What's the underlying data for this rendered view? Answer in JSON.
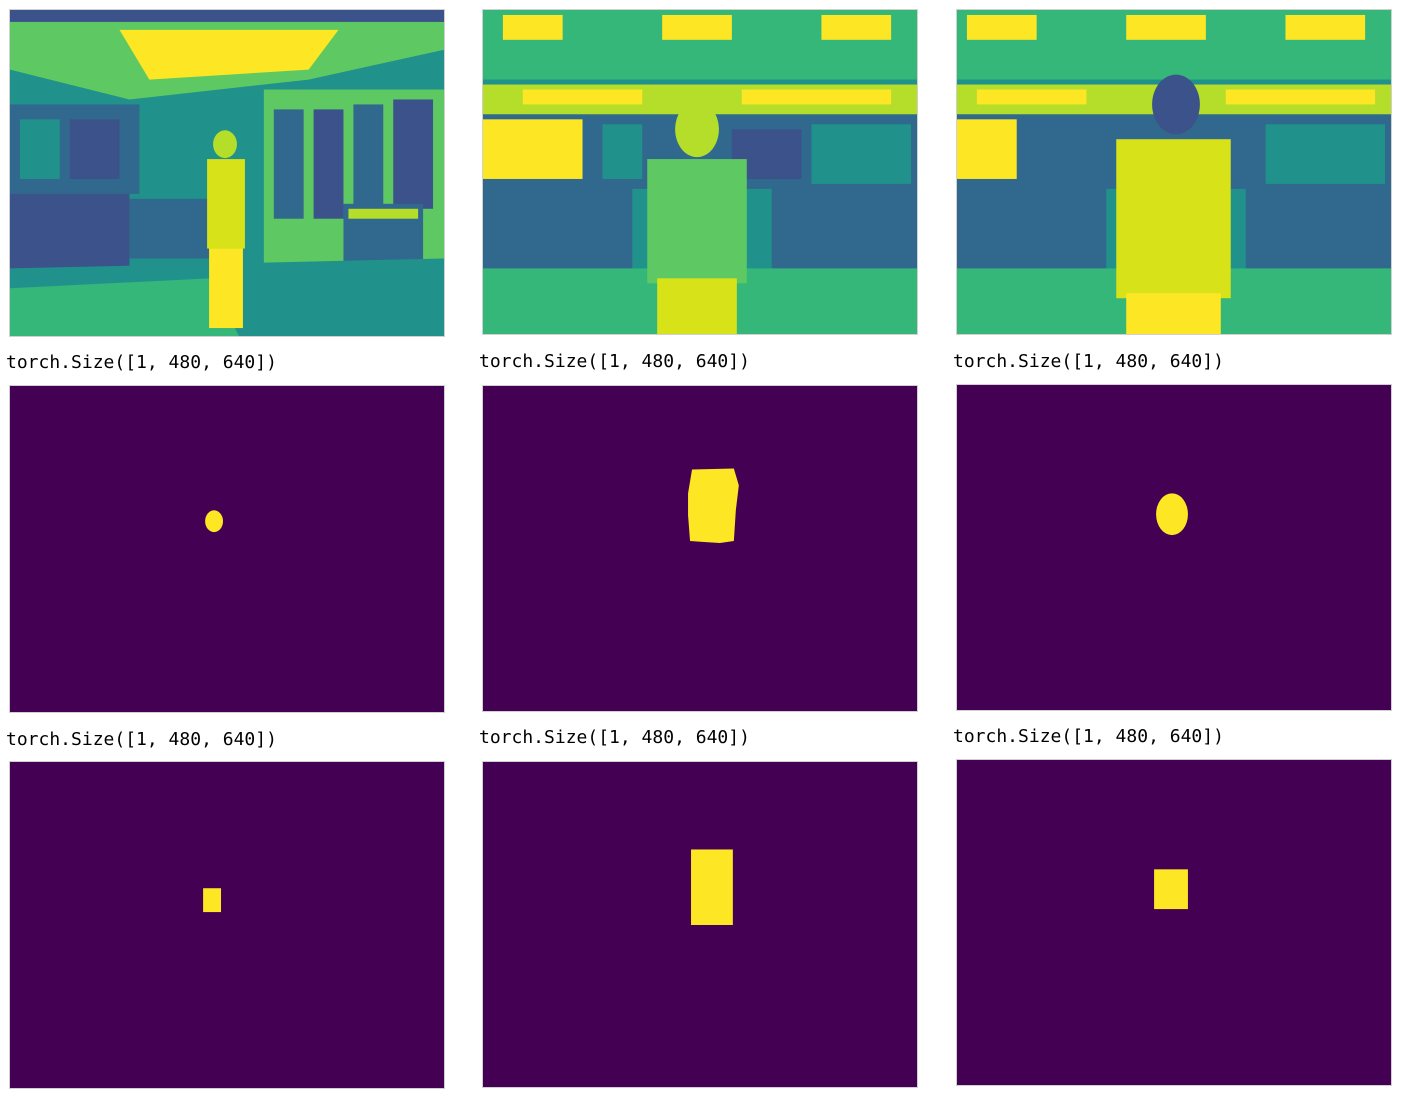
{
  "outputs": {
    "row1": [
      "torch.Size([1, 480, 640])",
      "torch.Size([1, 480, 640])",
      "torch.Size([1, 480, 640])"
    ],
    "row2": [
      "torch.Size([1, 480, 640])",
      "torch.Size([1, 480, 640])",
      "torch.Size([1, 480, 640])"
    ]
  },
  "colors": {
    "mask_background": "#440154",
    "mask_foreground": "#fde725",
    "image_dark": "#31688e",
    "image_mid": "#21918c",
    "image_light": "#5ec962",
    "image_bright": "#fde725"
  }
}
